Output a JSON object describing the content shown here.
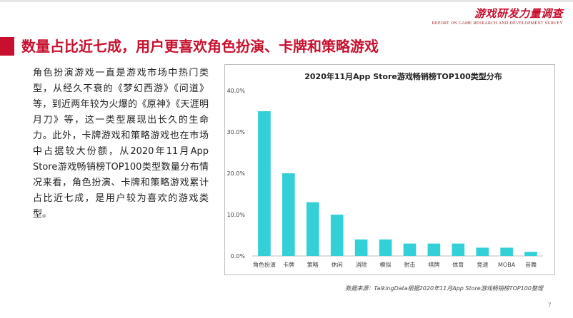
{
  "header": {
    "logo_title": "游戏研发力量调查",
    "logo_subtitle": "REPORT ON GAME RESEARCH AND DEVELOPMENT SURVEY"
  },
  "page_title": "数量占比近七成，用户更喜欢角色扮演、卡牌和策略游戏",
  "body_text": "角色扮演游戏一直是游戏市场中热门类型，从经久不衰的《梦幻西游》《问道》等，到近两年较为火爆的《原神》《天涯明月刀》等，这一类型展现出长久的生命力。此外，卡牌游戏和策略游戏也在市场中占据较大份额，从2020年11月App Store游戏畅销榜TOP100类型数量分布情况来看，角色扮演、卡牌和策略游戏累计占比近七成，是用户较为喜欢的游戏类型。",
  "source_note": "数据来源：TalkingData根据2020年11月App Store游戏畅销榜TOP100整理",
  "page_number": "7",
  "colors": {
    "accent": "#c8102e",
    "bar": "#33d0d8",
    "axis": "#bfbfbf"
  },
  "chart_data": {
    "type": "bar",
    "title": "2020年11月App Store游戏畅销榜TOP100类型分布",
    "xlabel": "",
    "ylabel": "",
    "categories": [
      "角色扮演",
      "卡牌",
      "策略",
      "休闲",
      "消除",
      "模拟",
      "射击",
      "棋牌",
      "体育",
      "竞速",
      "MOBA",
      "音舞"
    ],
    "values": [
      35,
      20,
      13,
      10,
      4,
      4,
      3,
      3,
      3,
      2,
      2,
      1
    ],
    "ylim": [
      0,
      40
    ],
    "yticks": [
      "0.0%",
      "10.0%",
      "20.0%",
      "30.0%",
      "40.0%"
    ],
    "grid": false,
    "legend": "none"
  }
}
